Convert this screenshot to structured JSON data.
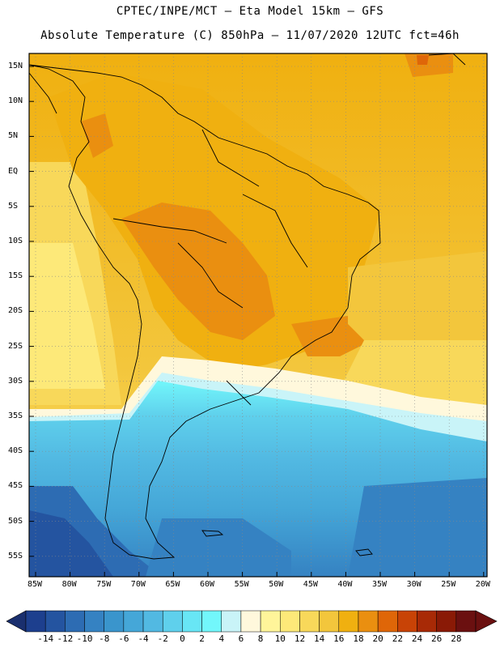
{
  "header": {
    "line1": "CPTEC/INPE/MCT –  Eta Model 15km – GFS",
    "line2": "Absolute Temperature (C) 850hPa – 11/07/2020 12UTC fct=46h"
  },
  "axes": {
    "lat_labels": [
      "15N",
      "10N",
      "5N",
      "EQ",
      "5S",
      "10S",
      "15S",
      "20S",
      "25S",
      "30S",
      "35S",
      "40S",
      "45S",
      "50S",
      "55S"
    ],
    "lon_labels": [
      "85W",
      "80W",
      "75W",
      "70W",
      "65W",
      "60W",
      "55W",
      "50W",
      "45W",
      "40W",
      "35W",
      "30W",
      "25W",
      "20W"
    ]
  },
  "colorbar": {
    "ticks": [
      "-14",
      "-12",
      "-10",
      "-8",
      "-6",
      "-4",
      "-2",
      "0",
      "2",
      "4",
      "6",
      "8",
      "10",
      "12",
      "14",
      "16",
      "18",
      "20",
      "22",
      "24",
      "26",
      "28"
    ],
    "colors": [
      "#1d3f8e",
      "#2454a0",
      "#2d6cb3",
      "#3582c2",
      "#3a95cc",
      "#45a7d8",
      "#52b9e2",
      "#5fd0ec",
      "#68e6f5",
      "#72f7fb",
      "#c9f4f8",
      "#fff8dc",
      "#fff59a",
      "#fde979",
      "#f8d85a",
      "#f3c63c",
      "#f0b010",
      "#ea8f10",
      "#df6608",
      "#c84306",
      "#a82a06",
      "#8a1a06",
      "#6b1010"
    ]
  }
}
